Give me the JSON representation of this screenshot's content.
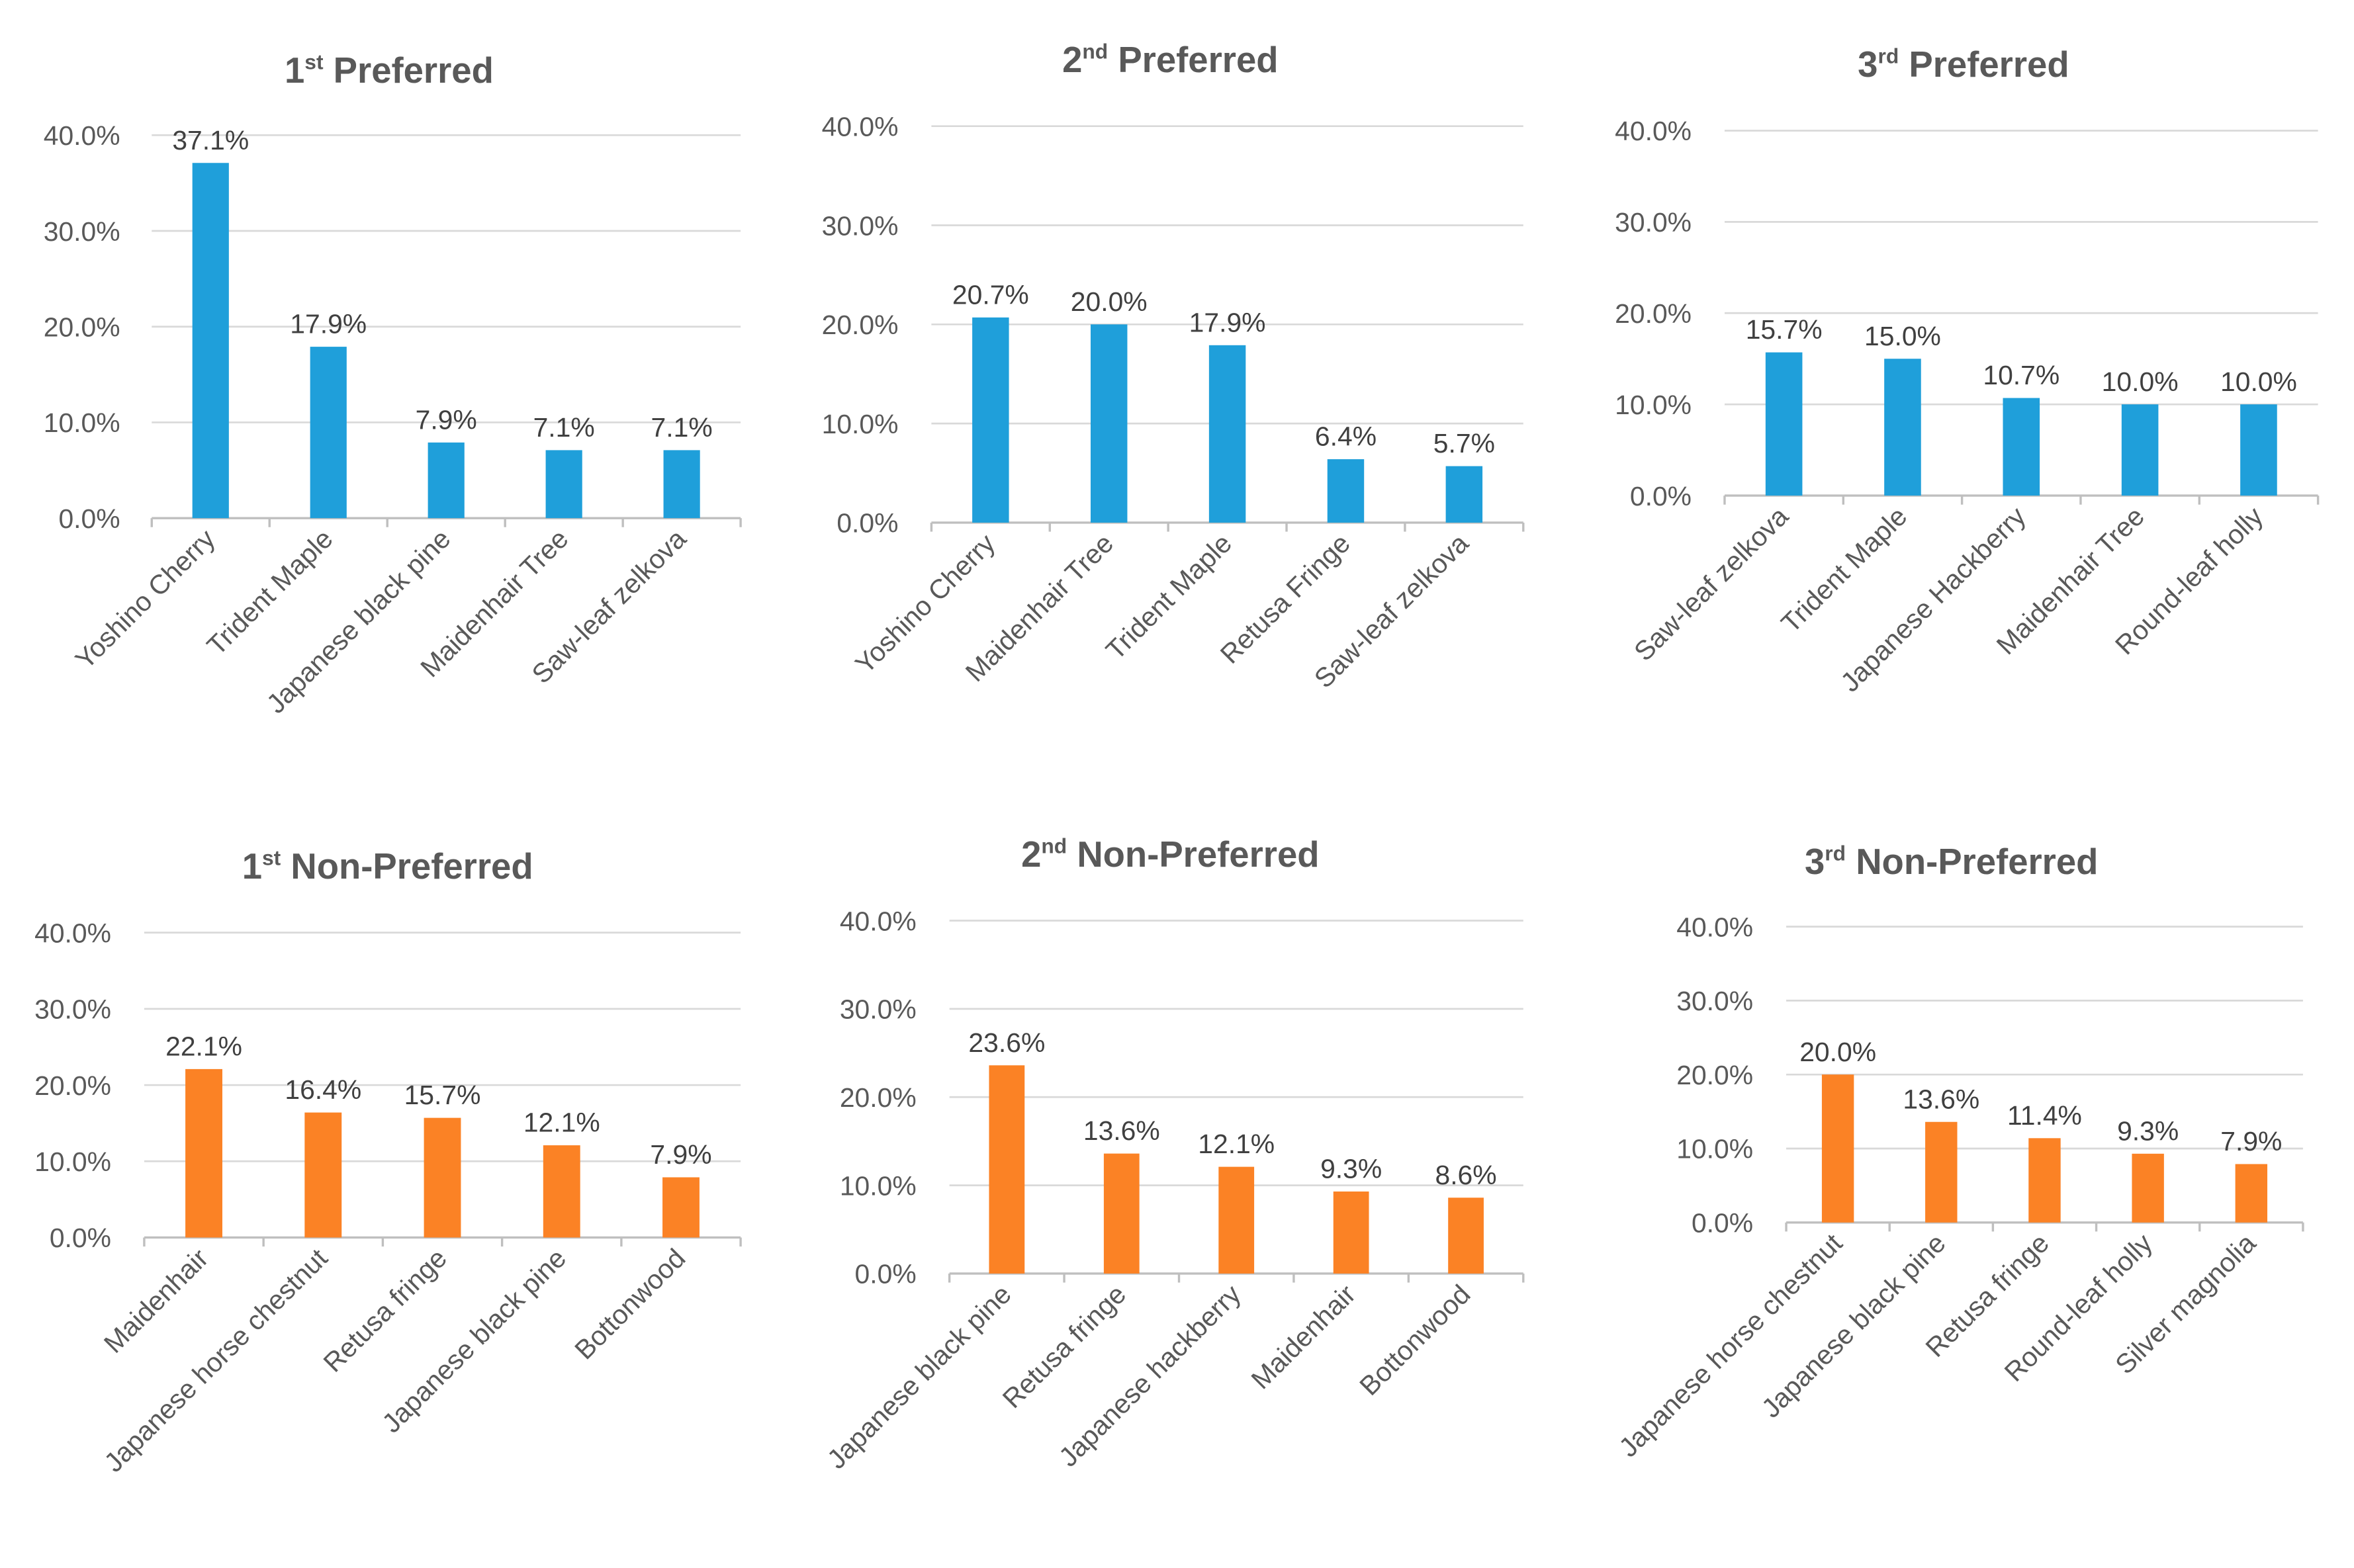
{
  "colors": {
    "preferred": "#1F9FDA",
    "non_preferred": "#FB8225",
    "grid": "#D9D9D9",
    "axis": "#BFBFBF",
    "text": "#595959"
  },
  "chart_data": [
    {
      "type": "bar",
      "title_num": "1",
      "title_sup": "st",
      "title_rest": " Preferred",
      "categories": [
        "Yoshino Cherry",
        "Trident Maple",
        "Japanese black pine",
        "Maidenhair Tree",
        "Saw-leaf zelkova"
      ],
      "values": [
        37.1,
        17.9,
        7.9,
        7.1,
        7.1
      ],
      "value_labels": [
        "37.1%",
        "17.9%",
        "7.9%",
        "7.1%",
        "7.1%"
      ],
      "yticks": [
        "0.0%",
        "10.0%",
        "20.0%",
        "30.0%",
        "40.0%"
      ],
      "ylim": [
        0,
        40
      ],
      "color": "preferred",
      "xlabel": "",
      "ylabel": ""
    },
    {
      "type": "bar",
      "title_num": "2",
      "title_sup": "nd",
      "title_rest": " Preferred",
      "categories": [
        "Yoshino Cherry",
        "Maidenhair Tree",
        "Trident Maple",
        "Retusa Fringe",
        "Saw-leaf zelkova"
      ],
      "values": [
        20.7,
        20.0,
        17.9,
        6.4,
        5.7
      ],
      "value_labels": [
        "20.7%",
        "20.0%",
        "17.9%",
        "6.4%",
        "5.7%"
      ],
      "yticks": [
        "0.0%",
        "10.0%",
        "20.0%",
        "30.0%",
        "40.0%"
      ],
      "ylim": [
        0,
        40
      ],
      "color": "preferred",
      "xlabel": "",
      "ylabel": ""
    },
    {
      "type": "bar",
      "title_num": "3",
      "title_sup": "rd",
      "title_rest": " Preferred",
      "categories": [
        "Saw-leaf zelkova",
        "Trident Maple",
        "Japanese Hackberry",
        "Maidenhair Tree",
        "Round-leaf holly"
      ],
      "values": [
        15.7,
        15.0,
        10.7,
        10.0,
        10.0
      ],
      "value_labels": [
        "15.7%",
        "15.0%",
        "10.7%",
        "10.0%",
        "10.0%"
      ],
      "yticks": [
        "0.0%",
        "10.0%",
        "20.0%",
        "30.0%",
        "40.0%"
      ],
      "ylim": [
        0,
        40
      ],
      "color": "preferred",
      "xlabel": "",
      "ylabel": ""
    },
    {
      "type": "bar",
      "title_num": "1",
      "title_sup": "st",
      "title_rest": " Non-Preferred",
      "categories": [
        "Maidenhair",
        "Japanese horse chestnut",
        "Retusa fringe",
        "Japanese black pine",
        "Bottonwood"
      ],
      "values": [
        22.1,
        16.4,
        15.7,
        12.1,
        7.9
      ],
      "value_labels": [
        "22.1%",
        "16.4%",
        "15.7%",
        "12.1%",
        "7.9%"
      ],
      "yticks": [
        "0.0%",
        "10.0%",
        "20.0%",
        "30.0%",
        "40.0%"
      ],
      "ylim": [
        0,
        40
      ],
      "color": "non_preferred",
      "xlabel": "",
      "ylabel": ""
    },
    {
      "type": "bar",
      "title_num": "2",
      "title_sup": "nd",
      "title_rest": " Non-Preferred",
      "categories": [
        "Japanese black pine",
        "Retusa fringe",
        "Japanese hackberry",
        "Maidenhair",
        "Bottonwood"
      ],
      "values": [
        23.6,
        13.6,
        12.1,
        9.3,
        8.6
      ],
      "value_labels": [
        "23.6%",
        "13.6%",
        "12.1%",
        "9.3%",
        "8.6%"
      ],
      "yticks": [
        "0.0%",
        "10.0%",
        "20.0%",
        "30.0%",
        "40.0%"
      ],
      "ylim": [
        0,
        40
      ],
      "color": "non_preferred",
      "xlabel": "",
      "ylabel": ""
    },
    {
      "type": "bar",
      "title_num": "3",
      "title_sup": "rd",
      "title_rest": " Non-Preferred",
      "categories": [
        "Japanese horse chestnut",
        "Japanese black pine",
        "Retusa fringe",
        "Round-leaf holly",
        "Silver magnolia"
      ],
      "values": [
        20.0,
        13.6,
        11.4,
        9.3,
        7.9
      ],
      "value_labels": [
        "20.0%",
        "13.6%",
        "11.4%",
        "9.3%",
        "7.9%"
      ],
      "yticks": [
        "0.0%",
        "10.0%",
        "20.0%",
        "30.0%",
        "40.0%"
      ],
      "ylim": [
        0,
        40
      ],
      "color": "non_preferred",
      "xlabel": "",
      "ylabel": ""
    }
  ]
}
